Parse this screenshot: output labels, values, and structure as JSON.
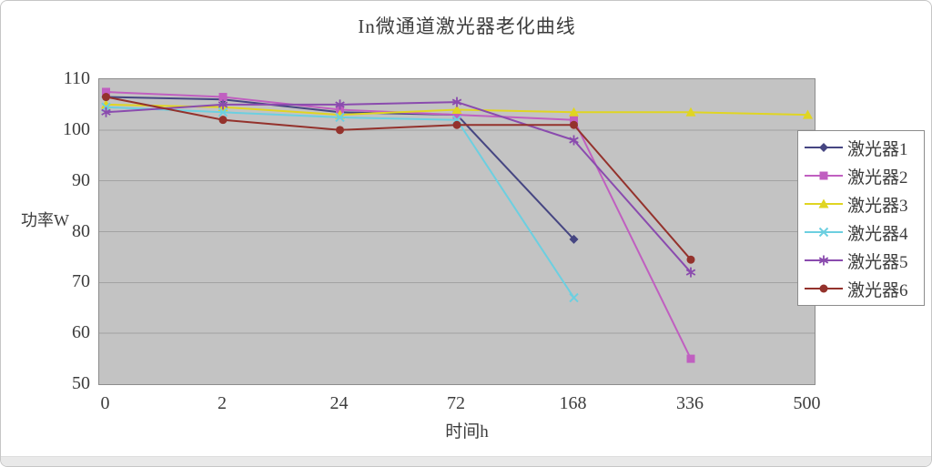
{
  "chart_data": {
    "type": "line",
    "title": "In微通道激光器老化曲线",
    "xlabel": "时间h",
    "ylabel": "功率W",
    "ylim": [
      50,
      110
    ],
    "y_ticks": [
      110,
      100,
      90,
      80,
      70,
      60,
      50
    ],
    "categories": [
      "0",
      "2",
      "24",
      "72",
      "168",
      "336",
      "500"
    ],
    "grid": true,
    "legend_position": "right",
    "plot_background": "#c3c3c3",
    "gridline_color": "#a2a2a2",
    "series": [
      {
        "name": "激光器1",
        "color": "#464682",
        "marker": "diamond",
        "values": [
          106.5,
          106,
          103.5,
          103,
          78.5,
          null,
          null
        ]
      },
      {
        "name": "激光器2",
        "color": "#c05fc0",
        "marker": "square",
        "values": [
          107.5,
          106.5,
          104,
          103,
          102,
          55,
          null
        ]
      },
      {
        "name": "激光器3",
        "color": "#e0d522",
        "marker": "triangle",
        "values": [
          105,
          104.5,
          103,
          104,
          103.5,
          103.5,
          103
        ]
      },
      {
        "name": "激光器4",
        "color": "#6ccfe0",
        "marker": "x",
        "values": [
          104.5,
          103.5,
          102.5,
          102,
          67,
          null,
          null
        ]
      },
      {
        "name": "激光器5",
        "color": "#8a4bae",
        "marker": "asterisk",
        "values": [
          103.5,
          105,
          105,
          105.5,
          98,
          72,
          null
        ]
      },
      {
        "name": "激光器6",
        "color": "#94322c",
        "marker": "circle",
        "values": [
          106.5,
          102,
          100,
          101,
          101,
          74.5,
          null
        ]
      }
    ]
  }
}
